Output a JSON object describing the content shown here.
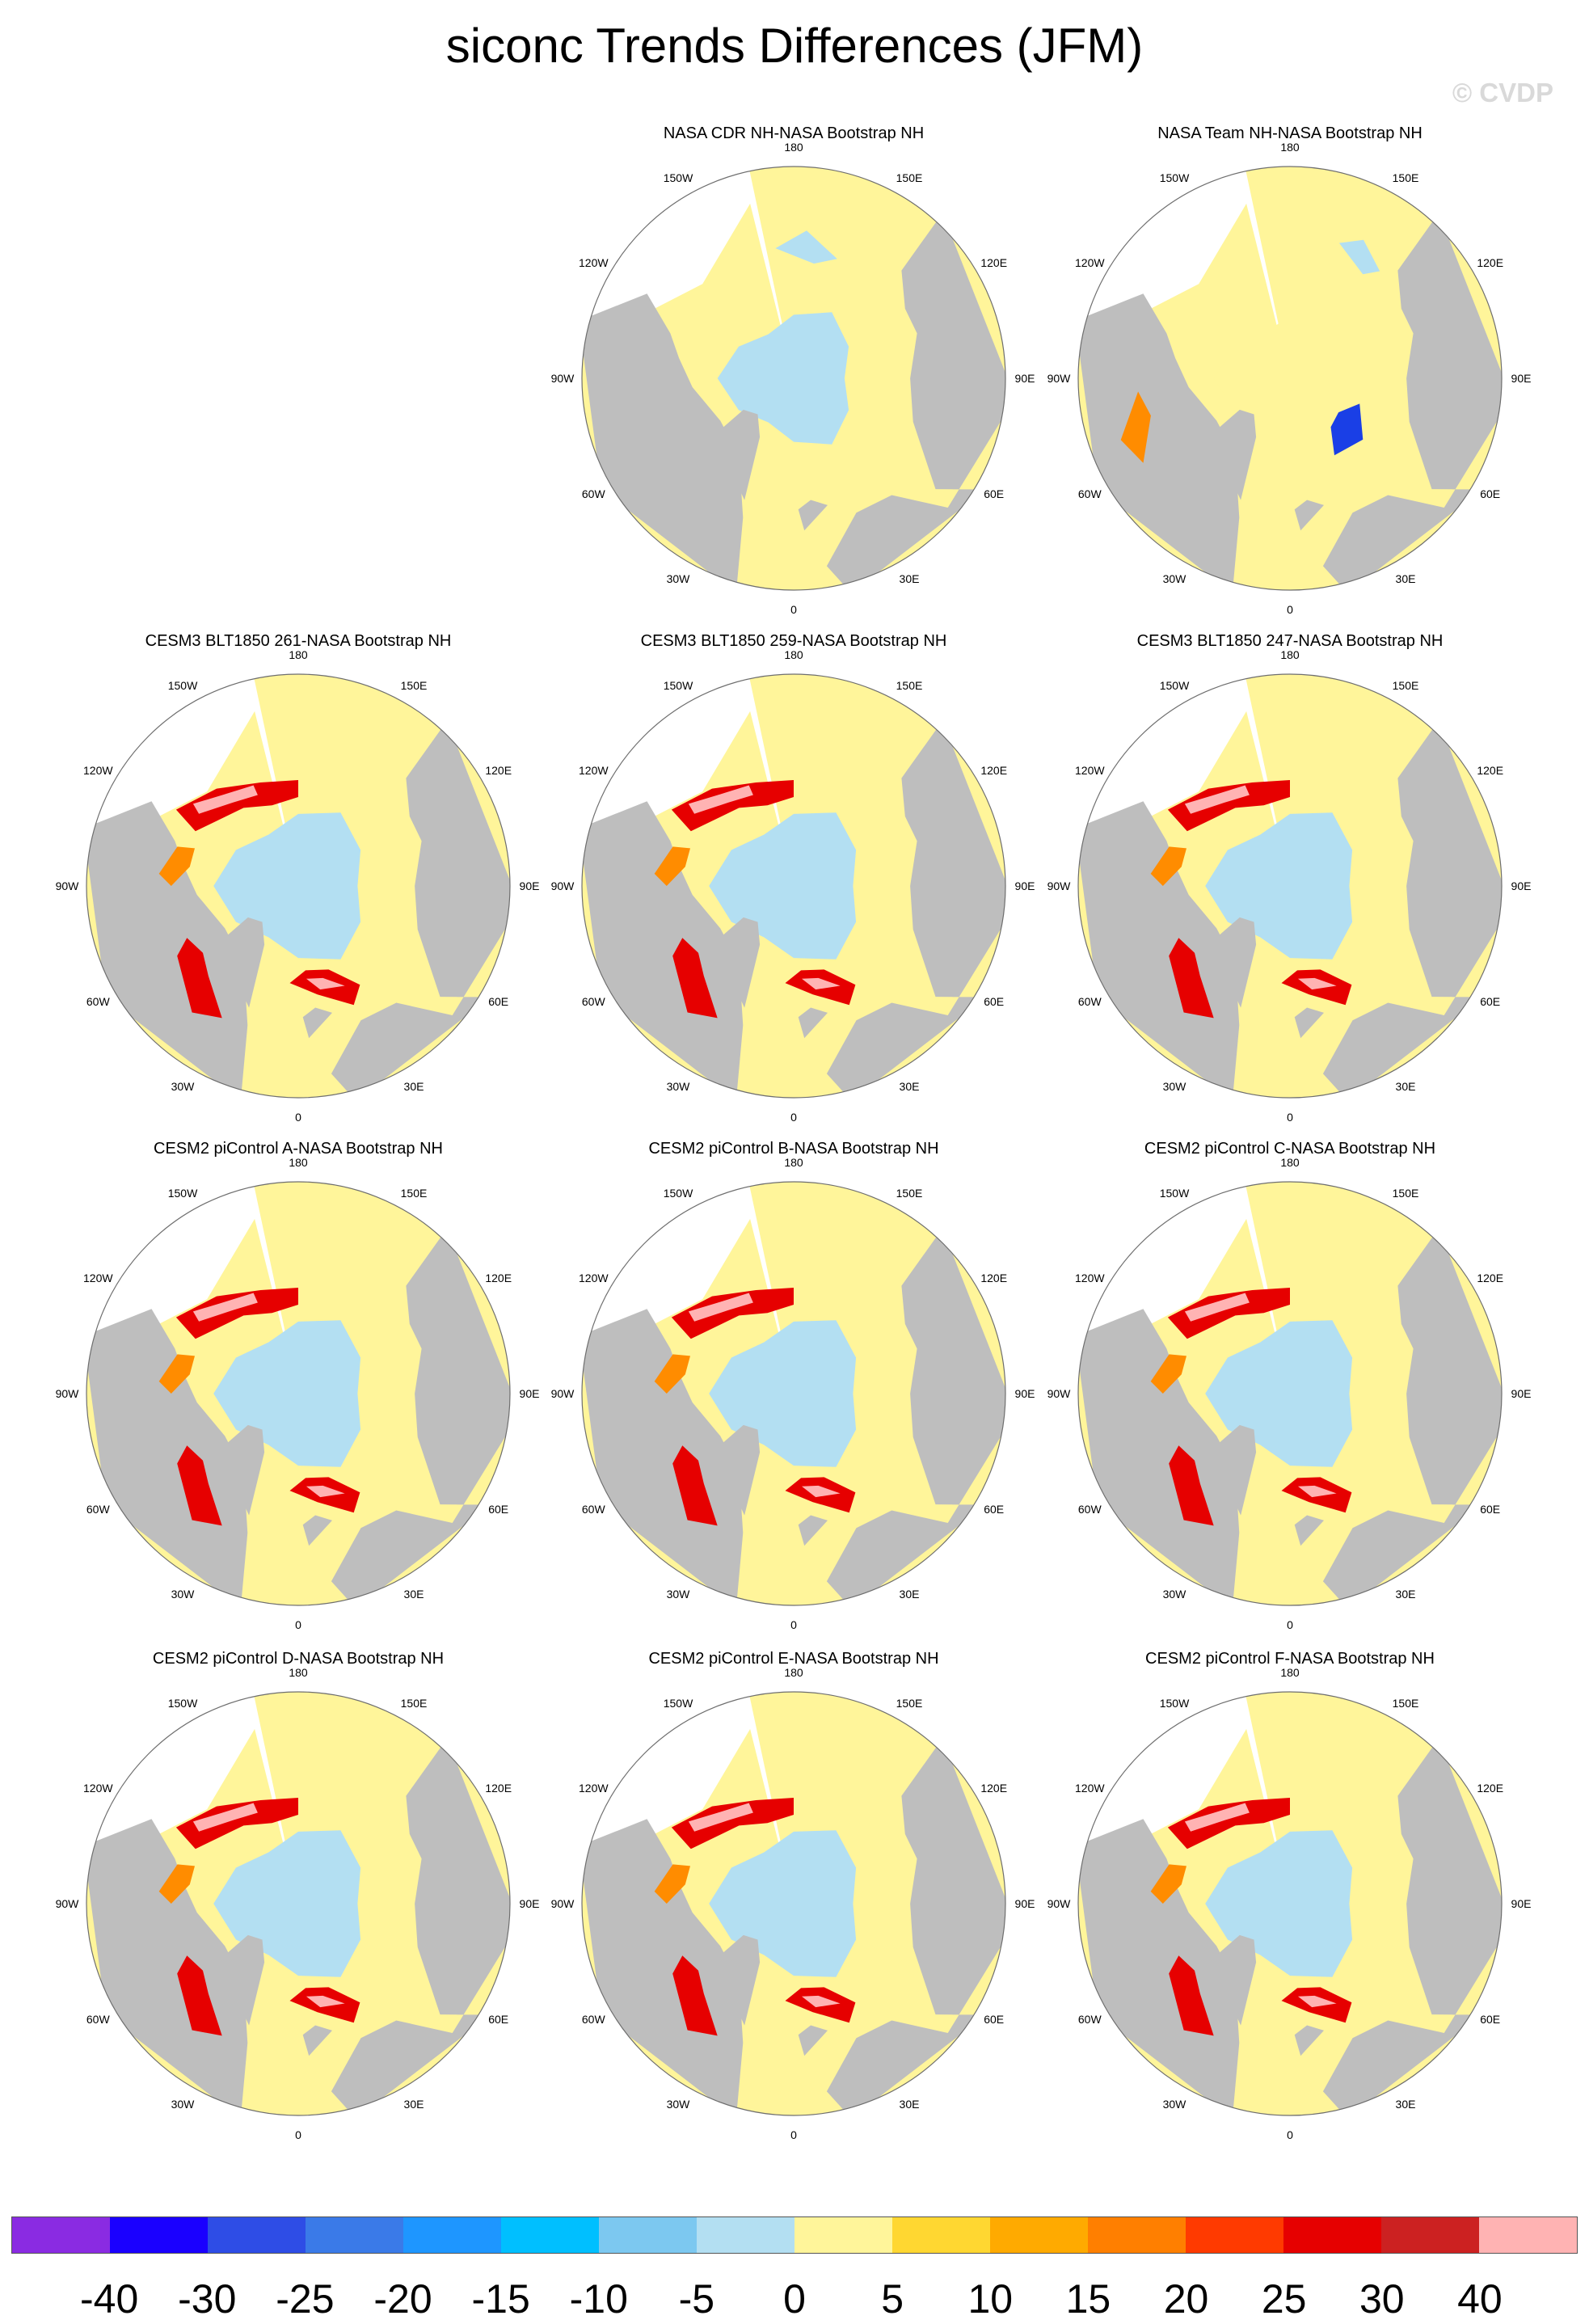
{
  "title": "siconc Trends Differences (JFM)",
  "watermark": "© CVDP",
  "colors": {
    "land": "#bebebe",
    "no_data": "#ffffff",
    "zero": "#fff59a",
    "light_blue": "#b3dff2",
    "orange": "#ff8c00",
    "red": "#e60000",
    "pink": "#ffb3b3",
    "blue": "#1a3fe6"
  },
  "tick_labels": [
    "180",
    "150E",
    "120E",
    "90E",
    "60E",
    "30E",
    "0",
    "30W",
    "60W",
    "90W",
    "120W",
    "150W"
  ],
  "panels": [
    {
      "title": "NASA CDR NH-NASA Bootstrap NH",
      "pattern": "cdr"
    },
    {
      "title": "NASA Team NH-NASA Bootstrap NH",
      "pattern": "team"
    },
    {
      "title": "CESM3 BLT1850 261-NASA Bootstrap NH",
      "pattern": "model"
    },
    {
      "title": "CESM3 BLT1850 259-NASA Bootstrap NH",
      "pattern": "model"
    },
    {
      "title": "CESM3 BLT1850 247-NASA Bootstrap NH",
      "pattern": "model"
    },
    {
      "title": "CESM2 piControl A-NASA Bootstrap NH",
      "pattern": "model"
    },
    {
      "title": "CESM2 piControl B-NASA Bootstrap NH",
      "pattern": "model"
    },
    {
      "title": "CESM2 piControl C-NASA Bootstrap NH",
      "pattern": "model"
    },
    {
      "title": "CESM2 piControl D-NASA Bootstrap NH",
      "pattern": "model"
    },
    {
      "title": "CESM2 piControl E-NASA Bootstrap NH",
      "pattern": "model"
    },
    {
      "title": "CESM2 piControl F-NASA Bootstrap NH",
      "pattern": "model"
    }
  ],
  "colorbar": {
    "colors": [
      "#8a2be2",
      "#1a00ff",
      "#2e4de6",
      "#3a7ae8",
      "#1e96ff",
      "#00bfff",
      "#7cc8f0",
      "#b3dff2",
      "#fff59a",
      "#ffd731",
      "#ffaa00",
      "#ff7f00",
      "#ff3a00",
      "#e60000",
      "#cc2121",
      "#ffb3b3"
    ],
    "labels": [
      "-40",
      "-30",
      "-25",
      "-20",
      "-15",
      "-10",
      "-5",
      "0",
      "5",
      "10",
      "15",
      "20",
      "25",
      "30",
      "40"
    ]
  }
}
